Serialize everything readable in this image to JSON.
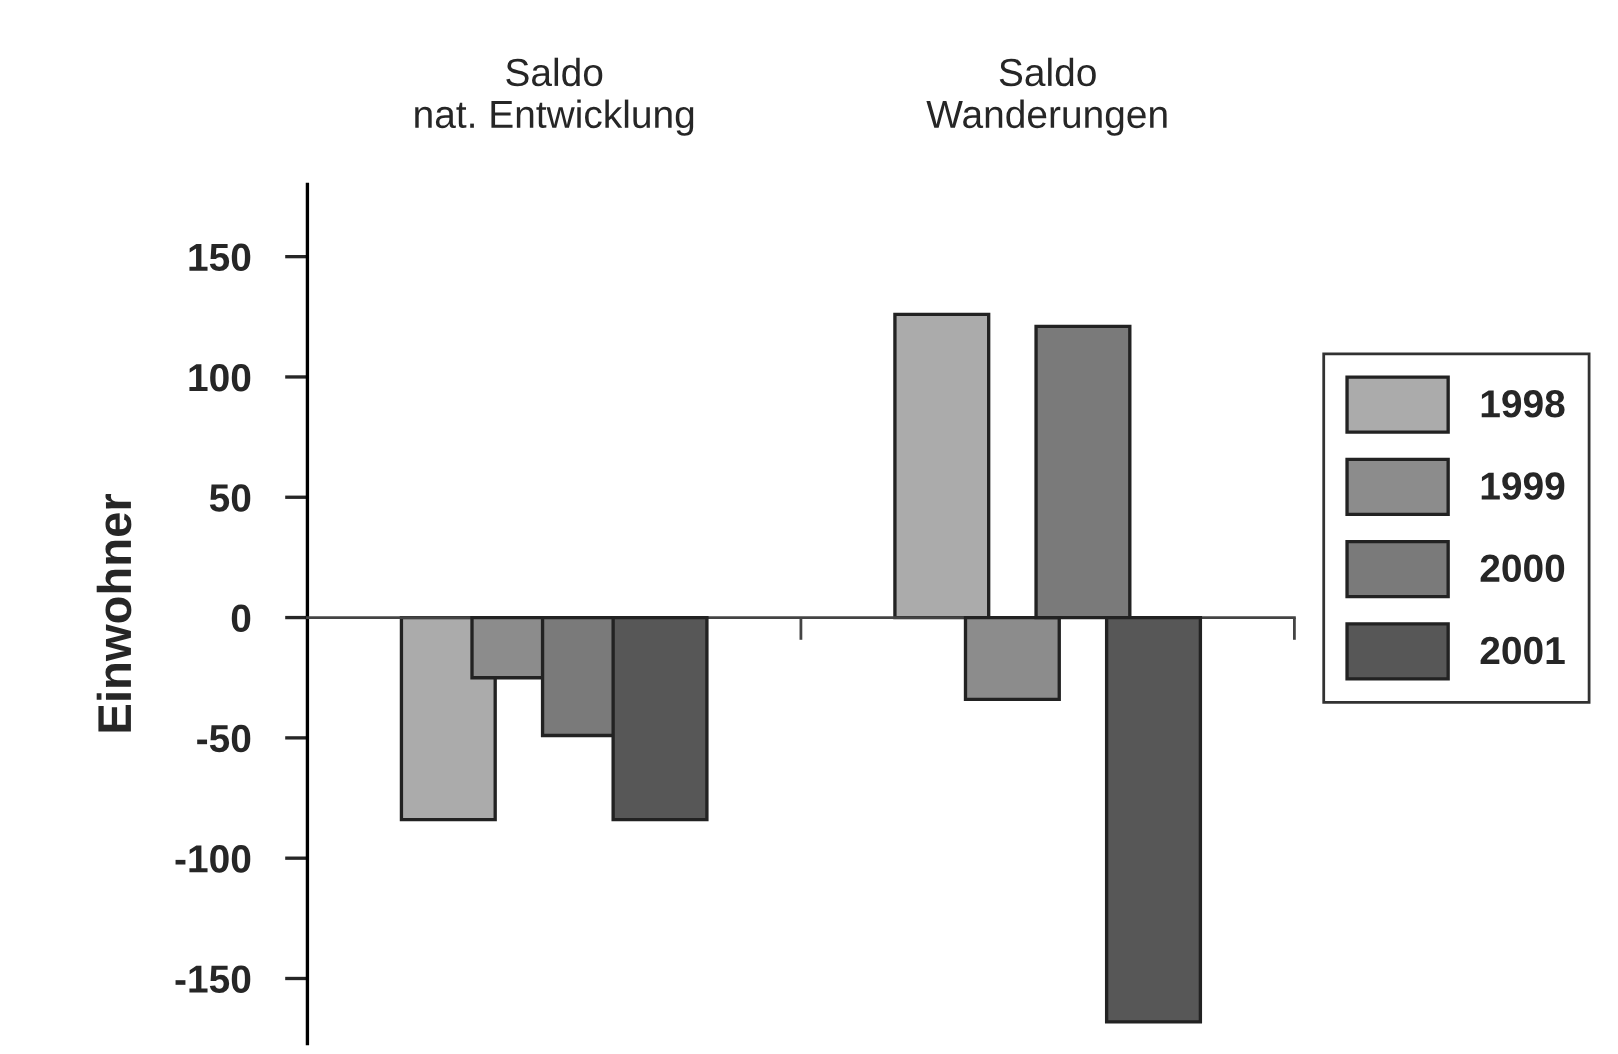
{
  "chart_data": {
    "type": "bar",
    "categories": [
      "Saldo\nnat. Entwicklung",
      "Saldo\nWanderungen"
    ],
    "ylabel": "Einwohner",
    "series": [
      {
        "name": "1998",
        "color": "#ababab",
        "values": [
          -84,
          126
        ]
      },
      {
        "name": "1999",
        "color": "#8c8c8c",
        "values": [
          -25,
          -34
        ]
      },
      {
        "name": "2000",
        "color": "#7a7a7a",
        "values": [
          -49,
          121
        ]
      },
      {
        "name": "2001",
        "color": "#575757",
        "values": [
          -84,
          -168
        ]
      }
    ],
    "ylim": [
      -177,
      180
    ],
    "yticks": [
      {
        "value": -150,
        "label": "-150"
      },
      {
        "value": -100,
        "label": "-100"
      },
      {
        "value": -50,
        "label": "-50"
      },
      0,
      50,
      100,
      150
    ],
    "legend": "right"
  }
}
